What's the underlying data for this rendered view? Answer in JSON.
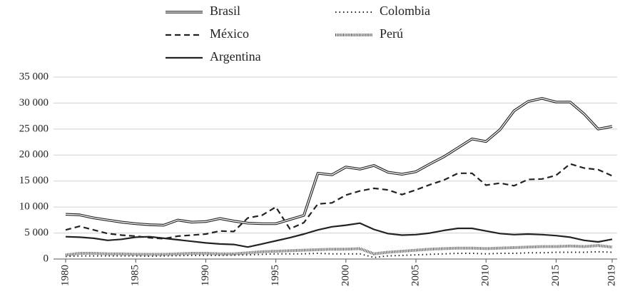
{
  "chart_data": {
    "type": "line",
    "x": [
      1980,
      1981,
      1982,
      1983,
      1984,
      1985,
      1986,
      1987,
      1988,
      1989,
      1990,
      1991,
      1992,
      1993,
      1994,
      1995,
      1996,
      1997,
      1998,
      1999,
      2000,
      2001,
      2002,
      2003,
      2004,
      2005,
      2006,
      2007,
      2008,
      2009,
      2010,
      2011,
      2012,
      2013,
      2014,
      2015,
      2016,
      2017,
      2018,
      2019
    ],
    "xlim": [
      1980,
      2019
    ],
    "xticks": [
      1980,
      1985,
      1990,
      1995,
      2000,
      2005,
      2010,
      2015,
      2019
    ],
    "ylim": [
      0,
      35000
    ],
    "yticks": [
      0,
      {
        "value": 5000,
        "label": "5 000"
      },
      {
        "value": 10000,
        "label": "10 000"
      },
      {
        "value": 15000,
        "label": "15 000"
      },
      {
        "value": 20000,
        "label": "20 000"
      },
      {
        "value": 25000,
        "label": "25 000"
      },
      {
        "value": 30000,
        "label": "30 000"
      },
      {
        "value": 35000,
        "label": "35 000"
      }
    ],
    "grid": true,
    "series": [
      {
        "name": "Brasil",
        "color": "#222222",
        "style": "double",
        "values": [
          8600,
          8500,
          7900,
          7500,
          7100,
          6800,
          6600,
          6500,
          7500,
          7100,
          7200,
          7800,
          7300,
          6900,
          6800,
          6800,
          7600,
          8400,
          16500,
          16200,
          17700,
          17300,
          18000,
          16700,
          16300,
          16800,
          18300,
          19700,
          21400,
          23100,
          22600,
          24900,
          28500,
          30300,
          30900,
          30200,
          30200,
          27900,
          25000,
          25500
        ]
      },
      {
        "name": "México",
        "color": "#222222",
        "style": "dashed",
        "values": [
          5600,
          6300,
          5600,
          4900,
          4600,
          4400,
          4100,
          3900,
          4400,
          4600,
          4800,
          5400,
          5300,
          7900,
          8400,
          10000,
          5800,
          7000,
          10600,
          10800,
          12300,
          13100,
          13600,
          13300,
          12400,
          13300,
          14300,
          15200,
          16500,
          16500,
          14200,
          14600,
          14100,
          15300,
          15400,
          16100,
          18300,
          17500,
          17200,
          16000
        ]
      },
      {
        "name": "Argentina",
        "color": "#222222",
        "style": "solid",
        "values": [
          4300,
          4200,
          4000,
          3600,
          3800,
          4200,
          4300,
          4000,
          3700,
          3400,
          3100,
          2900,
          2800,
          2300,
          2900,
          3500,
          4100,
          4800,
          5600,
          6200,
          6500,
          6900,
          5700,
          4900,
          4600,
          4700,
          5000,
          5500,
          5900,
          5900,
          5400,
          4900,
          4700,
          4800,
          4700,
          4500,
          4200,
          3600,
          3300,
          3800
        ]
      },
      {
        "name": "Colombia",
        "color": "#222222",
        "style": "dotted",
        "values": [
          500,
          600,
          600,
          600,
          600,
          600,
          550,
          600,
          650,
          700,
          700,
          700,
          750,
          800,
          900,
          1000,
          1000,
          1000,
          1100,
          1000,
          1000,
          1000,
          300,
          600,
          700,
          800,
          900,
          1000,
          1100,
          1100,
          1000,
          1100,
          1100,
          1200,
          1200,
          1300,
          1300,
          1300,
          1400,
          1300
        ]
      },
      {
        "name": "Perú",
        "color": "#444444",
        "style": "hatched",
        "values": [
          800,
          1100,
          1100,
          1000,
          1000,
          900,
          900,
          900,
          1000,
          1100,
          1100,
          1000,
          1000,
          1200,
          1400,
          1500,
          1600,
          1700,
          1800,
          1900,
          1900,
          2000,
          1000,
          1300,
          1500,
          1700,
          1900,
          2000,
          2100,
          2100,
          2000,
          2100,
          2200,
          2300,
          2400,
          2400,
          2500,
          2400,
          2600,
          2300
        ]
      }
    ],
    "legend": "top"
  }
}
